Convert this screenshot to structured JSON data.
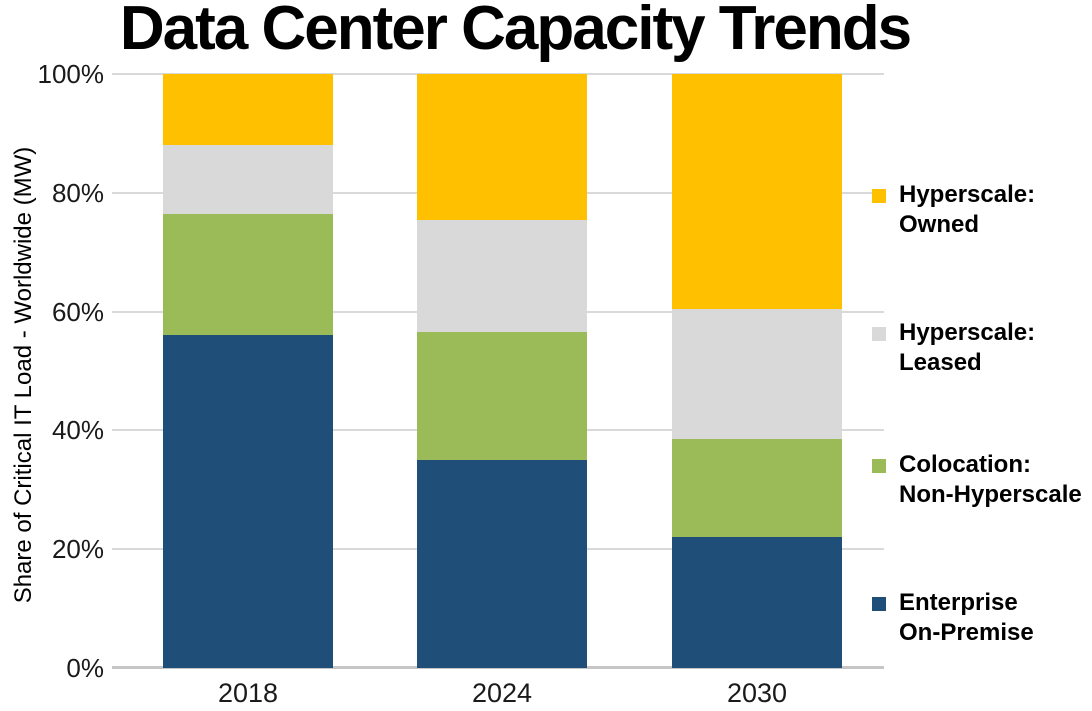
{
  "title": "Data Center Capacity Trends",
  "y_axis": {
    "label": "Share of Critical IT Load - Worldwide (MW)",
    "ticks": [
      "0%",
      "20%",
      "40%",
      "60%",
      "80%",
      "100%"
    ]
  },
  "x_axis": {
    "categories": [
      "2018",
      "2024",
      "2030"
    ]
  },
  "legend": [
    {
      "line1": "Hyperscale:",
      "line2": "Owned",
      "color": "#FFC000"
    },
    {
      "line1": "Hyperscale:",
      "line2": "Leased",
      "color": "#D9D9D9"
    },
    {
      "line1": "Colocation:",
      "line2": "Non-Hyperscale",
      "color": "#9BBB59"
    },
    {
      "line1": "Enterprise",
      "line2": "On-Premise",
      "color": "#1F4E79"
    }
  ],
  "chart_data": {
    "type": "bar",
    "stacked": true,
    "title": "Data Center Capacity Trends",
    "ylabel": "Share of Critical IT Load - Worldwide (MW)",
    "xlabel": "",
    "ylim": [
      0,
      100
    ],
    "yticks_percent": [
      0,
      20,
      40,
      60,
      80,
      100
    ],
    "grid": true,
    "legend_position": "right",
    "categories": [
      "2018",
      "2024",
      "2030"
    ],
    "series": [
      {
        "name": "Enterprise On-Premise",
        "color": "#1F4E79",
        "values": [
          56.0,
          35.0,
          22.0
        ]
      },
      {
        "name": "Colocation: Non-Hyperscale",
        "color": "#9BBB59",
        "values": [
          20.5,
          21.5,
          16.5
        ]
      },
      {
        "name": "Hyperscale: Leased",
        "color": "#D9D9D9",
        "values": [
          11.5,
          19.0,
          22.0
        ]
      },
      {
        "name": "Hyperscale: Owned",
        "color": "#FFC000",
        "values": [
          12.0,
          24.5,
          39.5
        ]
      }
    ]
  }
}
